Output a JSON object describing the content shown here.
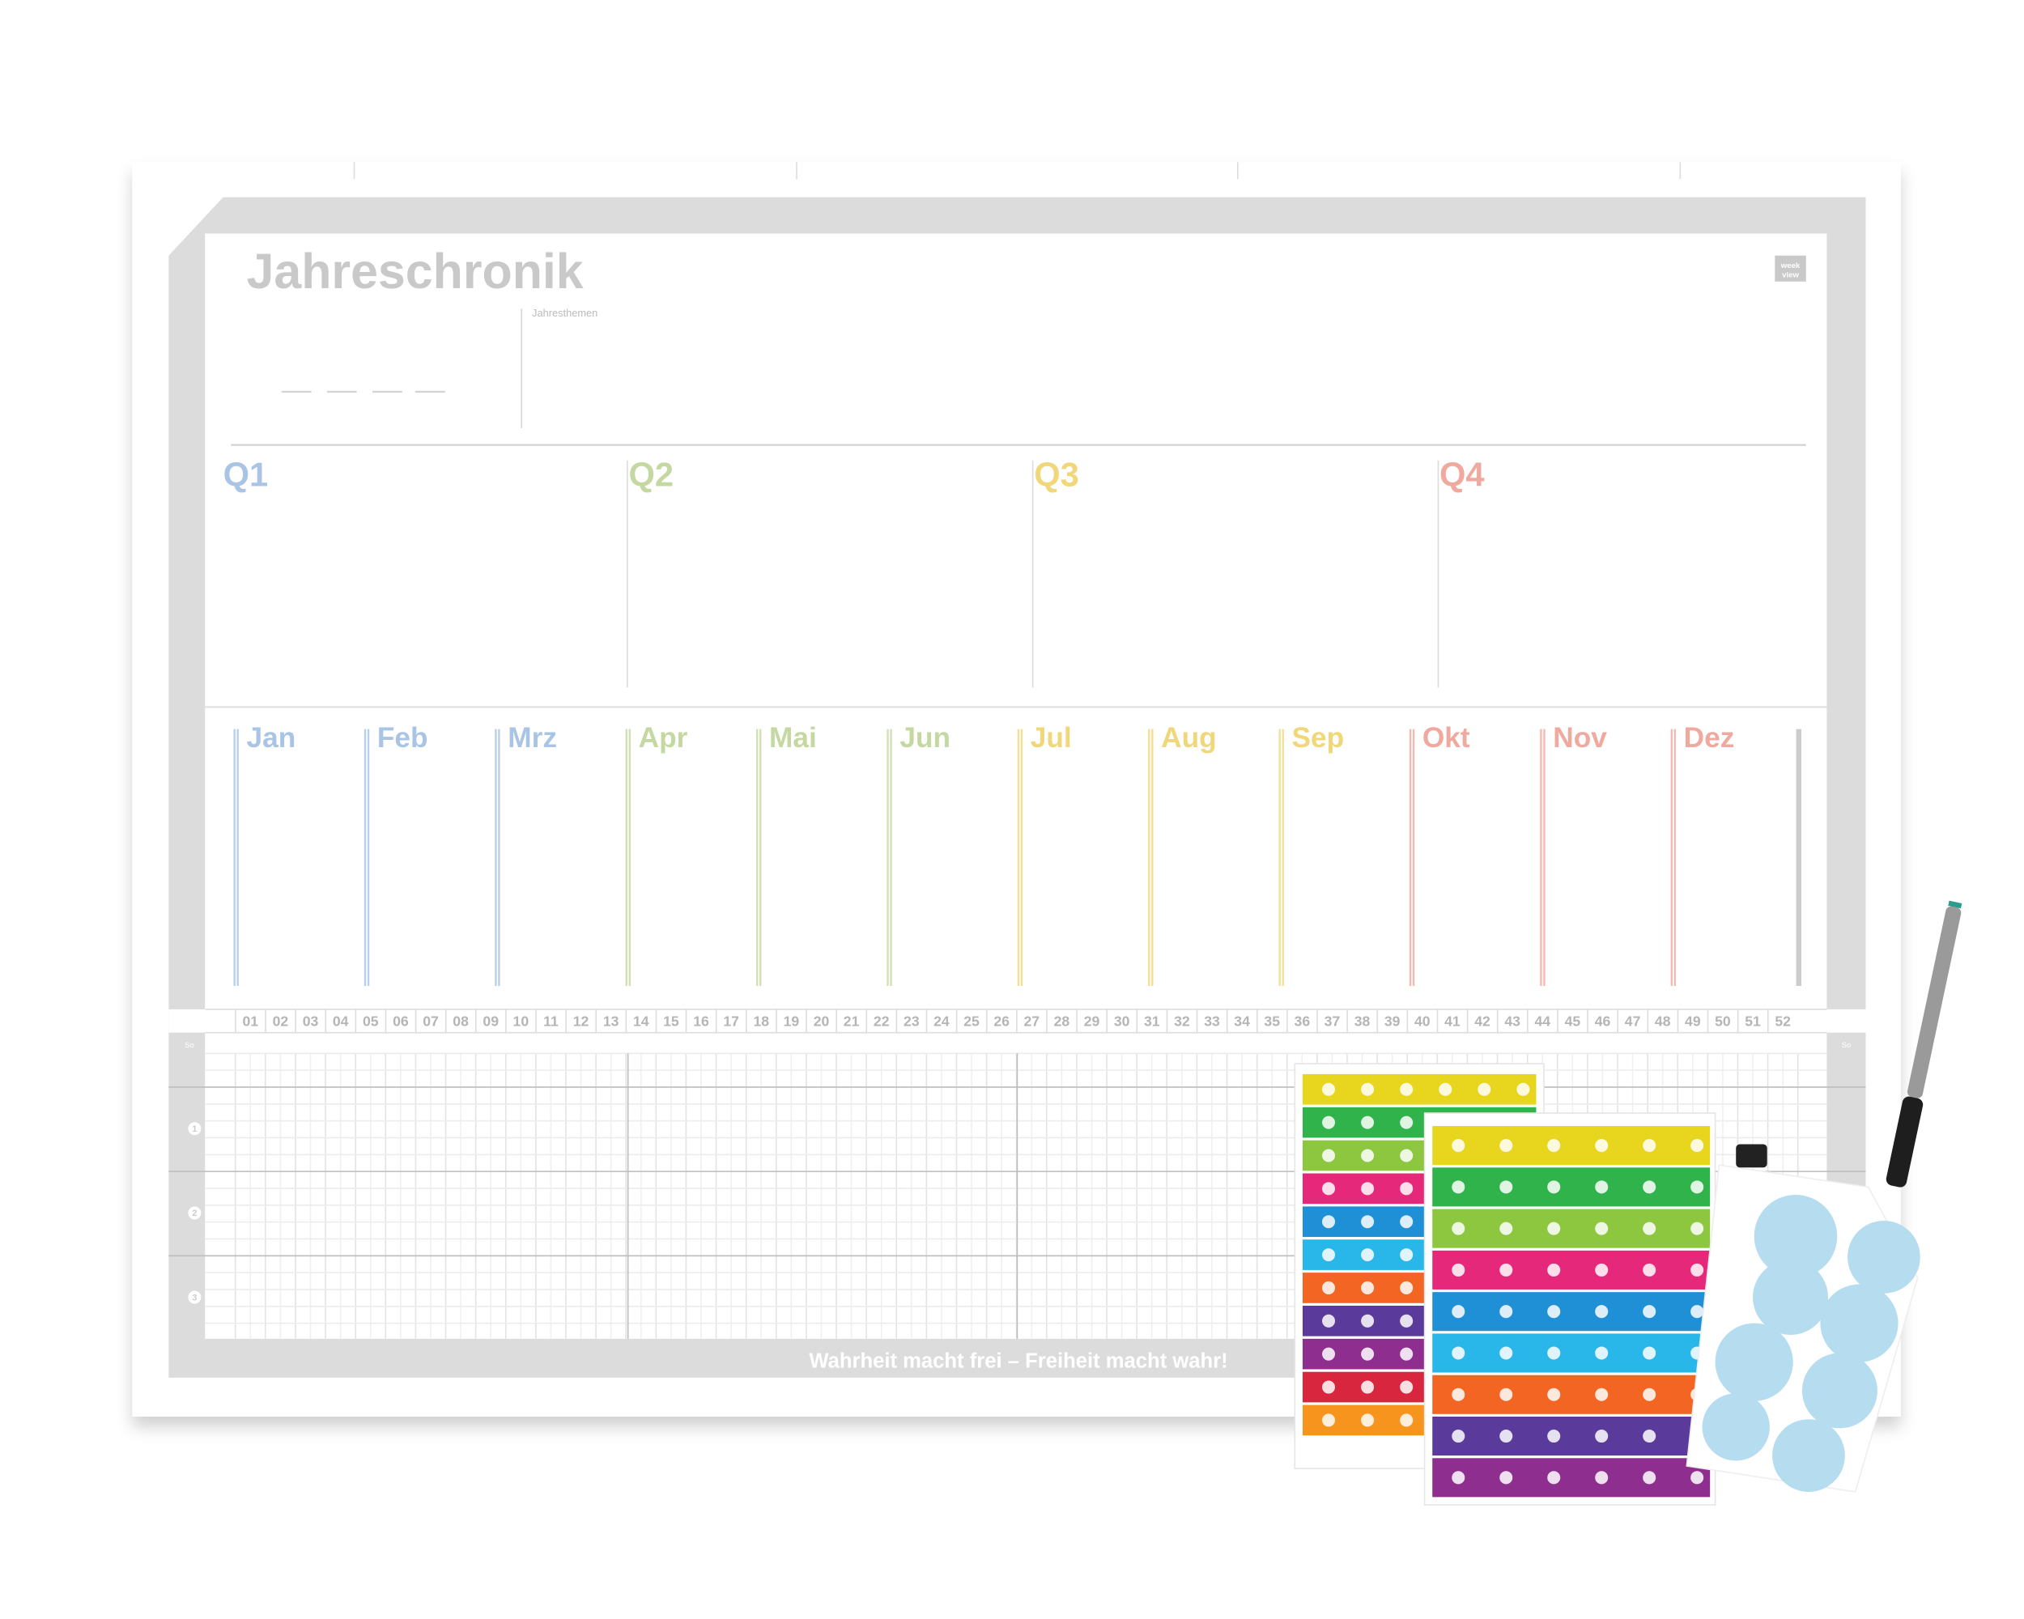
{
  "header": {
    "title": "Jahreschronik",
    "themes_label": "Jahresthemen",
    "logo": [
      "week",
      "view"
    ]
  },
  "quarters": [
    "Q1",
    "Q2",
    "Q3",
    "Q4"
  ],
  "months": [
    "Jan",
    "Feb",
    "Mrz",
    "Apr",
    "Mai",
    "Jun",
    "Jul",
    "Aug",
    "Sep",
    "Okt",
    "Nov",
    "Dez"
  ],
  "weeks": {
    "label": "Wo",
    "day_label": "So",
    "numbers": [
      "01",
      "02",
      "03",
      "04",
      "05",
      "06",
      "07",
      "08",
      "09",
      "10",
      "11",
      "12",
      "13",
      "14",
      "15",
      "16",
      "17",
      "18",
      "19",
      "20",
      "21",
      "22",
      "23",
      "24",
      "25",
      "26",
      "27",
      "28",
      "29",
      "30",
      "31",
      "32",
      "33",
      "34",
      "35",
      "36",
      "37",
      "38",
      "39",
      "40",
      "41",
      "42",
      "43",
      "44",
      "45",
      "46",
      "47",
      "48",
      "49",
      "50",
      "51",
      "52"
    ]
  },
  "rows": [
    "1",
    "2",
    "3"
  ],
  "footer": "Wahrheit macht frei – Freiheit macht wahr!"
}
